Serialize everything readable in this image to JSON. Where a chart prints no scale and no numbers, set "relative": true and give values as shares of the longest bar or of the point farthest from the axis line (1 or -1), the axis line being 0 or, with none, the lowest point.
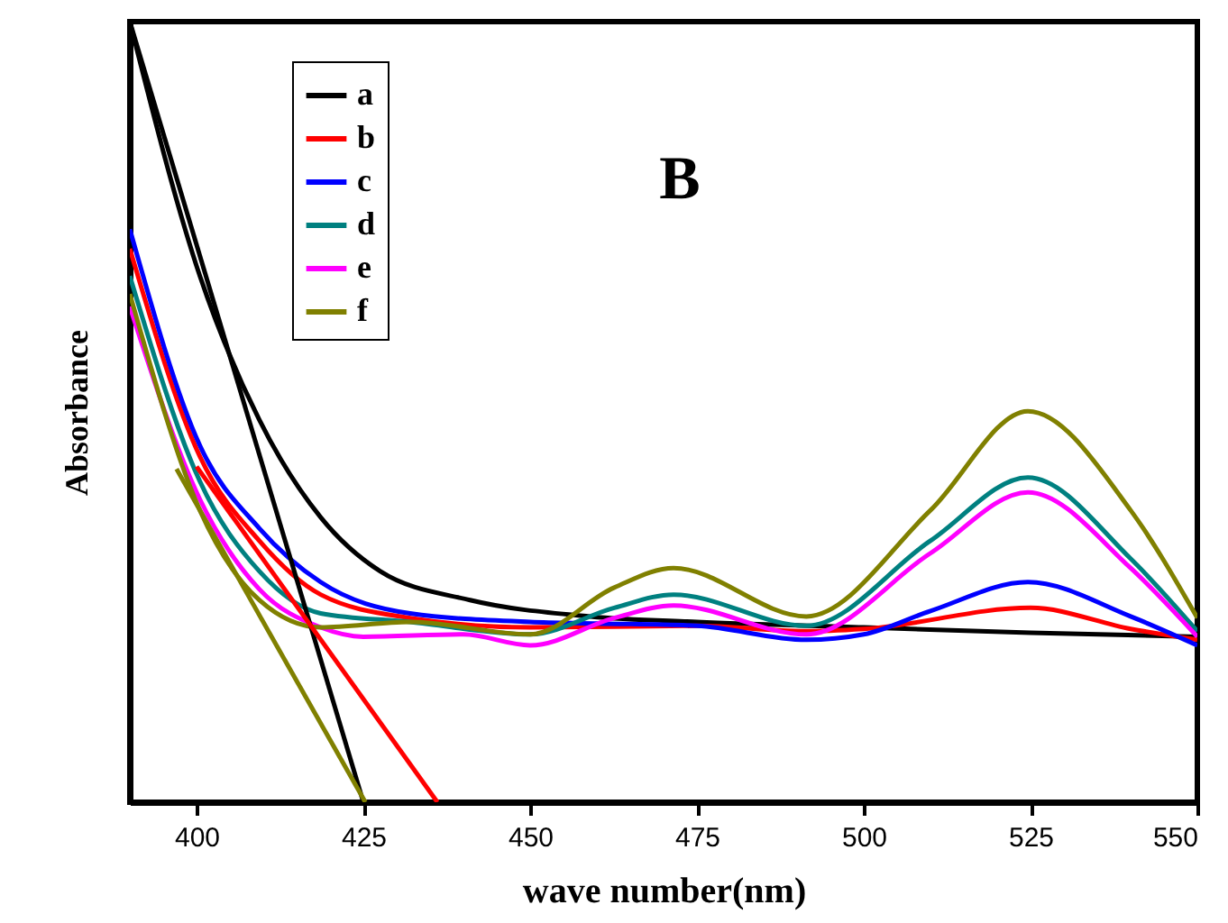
{
  "chart_data": {
    "type": "line",
    "relative": true,
    "xlabel": "wave number(nm)",
    "ylabel": "Absorbance",
    "annotations": [
      "B"
    ],
    "xlim": [
      390,
      550
    ],
    "xticks": [
      400,
      425,
      450,
      475,
      500,
      525,
      550
    ],
    "grid": false,
    "legend": "top left",
    "marker": "none",
    "line_style": "solid",
    "series": [
      {
        "name": "a",
        "color": "#000000",
        "x": [
          390,
          400.5,
          409.4,
          418.6,
          427.5,
          441,
          459,
          475,
          500,
          525,
          550
        ],
        "values": [
          1.0,
          0.674,
          0.49,
          0.365,
          0.296,
          0.259,
          0.238,
          0.231,
          0.224,
          0.217,
          0.212
        ]
      },
      {
        "name": "b",
        "color": "#ff0000",
        "x": [
          390,
          400.5,
          409.4,
          418.6,
          432,
          450,
          475,
          491,
          500,
          525,
          540,
          550
        ],
        "values": [
          0.709,
          0.443,
          0.335,
          0.266,
          0.236,
          0.224,
          0.226,
          0.219,
          0.222,
          0.249,
          0.222,
          0.208
        ]
      },
      {
        "name": "c",
        "color": "#0000ff",
        "x": [
          390,
          400.5,
          409.4,
          418.6,
          432,
          450,
          460,
          475,
          491.4,
          500,
          510,
          524.6,
          540,
          550
        ],
        "values": [
          0.734,
          0.457,
          0.351,
          0.282,
          0.242,
          0.231,
          0.229,
          0.226,
          0.208,
          0.215,
          0.245,
          0.282,
          0.238,
          0.201
        ]
      },
      {
        "name": "d",
        "color": "#008080",
        "x": [
          390,
          400.5,
          409.4,
          418.6,
          432,
          450,
          462.6,
          471.5,
          491.4,
          510,
          524.6,
          540,
          550
        ],
        "values": [
          0.674,
          0.411,
          0.296,
          0.242,
          0.231,
          0.215,
          0.249,
          0.266,
          0.226,
          0.335,
          0.416,
          0.312,
          0.219
        ]
      },
      {
        "name": "e",
        "color": "#ff00ff",
        "x": [
          390,
          400.5,
          409.4,
          418.6,
          425,
          440,
          450,
          462.6,
          471.5,
          491.4,
          510,
          524.6,
          540,
          550
        ],
        "values": [
          0.635,
          0.388,
          0.273,
          0.224,
          0.212,
          0.215,
          0.201,
          0.236,
          0.252,
          0.215,
          0.319,
          0.397,
          0.3,
          0.212
        ]
      },
      {
        "name": "f",
        "color": "#808000",
        "x": [
          390,
          400.5,
          409.4,
          418.6,
          432,
          450,
          462.6,
          471.5,
          491.4,
          510,
          524.6,
          540,
          550
        ],
        "values": [
          0.651,
          0.374,
          0.259,
          0.224,
          0.231,
          0.215,
          0.275,
          0.3,
          0.238,
          0.374,
          0.501,
          0.374,
          0.236
        ]
      },
      {
        "color": "#000000",
        "x": [
          390,
          425
        ],
        "values": [
          1.0,
          0
        ]
      },
      {
        "color": "#ff0000",
        "x": [
          400,
          436.1
        ],
        "values": [
          0.43,
          0
        ]
      },
      {
        "color": "#808000",
        "x": [
          397,
          425.3
        ],
        "values": [
          0.427,
          0
        ]
      }
    ]
  }
}
